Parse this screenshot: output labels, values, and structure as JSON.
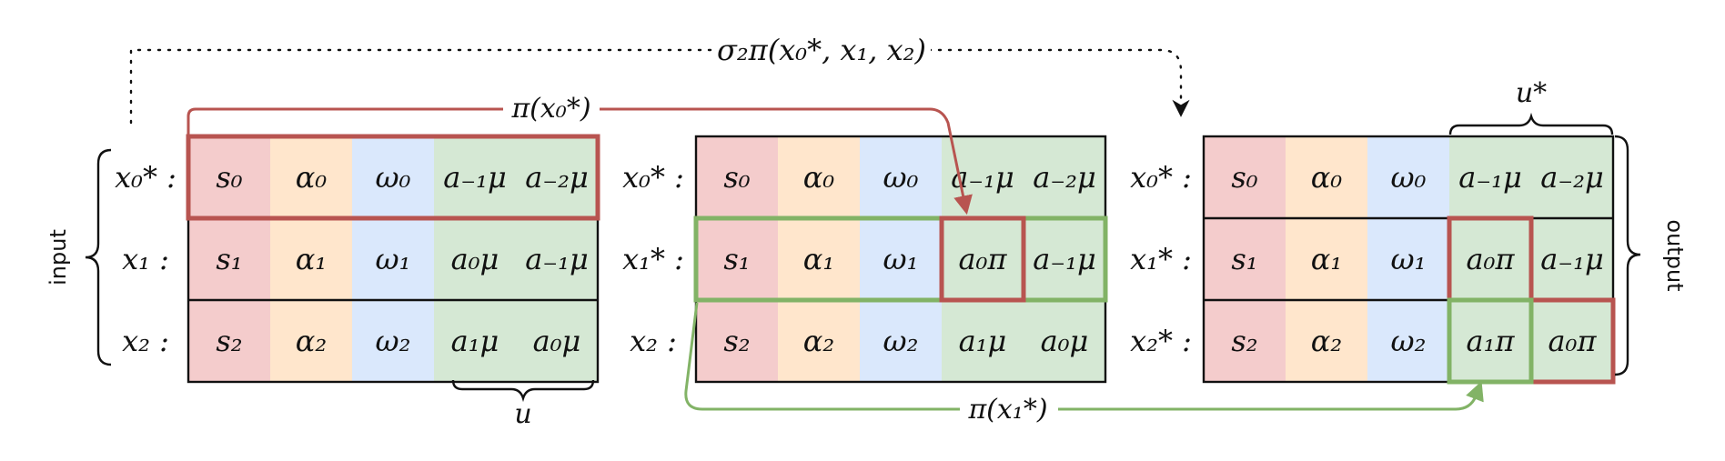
{
  "colors": {
    "state": "#f4cccc",
    "alpha": "#ffe6cc",
    "omega": "#dae8fc",
    "action": "#d5e8d4",
    "red": "#b85450",
    "green": "#82b366",
    "border": "#111111"
  },
  "dotted_arrow_label": "σ₂π(x₀*, x₁, x₂)",
  "arrows": {
    "pi_x0": "π(x₀*)",
    "pi_x1": "π(x₁*)"
  },
  "braces": {
    "input": "input",
    "output": "output",
    "u": "u",
    "u_star": "u*"
  },
  "tables": [
    {
      "rows": [
        {
          "label": "x₀* :",
          "cells": [
            "s₀",
            "α₀",
            "ω₀",
            "a₋₁μ",
            "a₋₂μ"
          ]
        },
        {
          "label": "x₁ :",
          "cells": [
            "s₁",
            "α₁",
            "ω₁",
            "a₀μ",
            "a₋₁μ"
          ]
        },
        {
          "label": "x₂ :",
          "cells": [
            "s₂",
            "α₂",
            "ω₂",
            "a₁μ",
            "a₀μ"
          ]
        }
      ]
    },
    {
      "rows": [
        {
          "label": "x₀* :",
          "cells": [
            "s₀",
            "α₀",
            "ω₀",
            "a₋₁μ",
            "a₋₂μ"
          ]
        },
        {
          "label": "x₁* :",
          "cells": [
            "s₁",
            "α₁",
            "ω₁",
            "a₀π",
            "a₋₁μ"
          ]
        },
        {
          "label": "x₂ :",
          "cells": [
            "s₂",
            "α₂",
            "ω₂",
            "a₁μ",
            "a₀μ"
          ]
        }
      ]
    },
    {
      "rows": [
        {
          "label": "x₀* :",
          "cells": [
            "s₀",
            "α₀",
            "ω₀",
            "a₋₁μ",
            "a₋₂μ"
          ]
        },
        {
          "label": "x₁* :",
          "cells": [
            "s₁",
            "α₁",
            "ω₁",
            "a₀π",
            "a₋₁μ"
          ]
        },
        {
          "label": "x₂* :",
          "cells": [
            "s₂",
            "α₂",
            "ω₂",
            "a₁π",
            "a₀π"
          ]
        }
      ]
    }
  ]
}
